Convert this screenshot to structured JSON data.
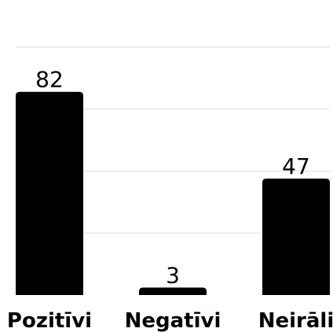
{
  "chart_data": {
    "type": "bar",
    "categories": [
      "Pozitīvi",
      "Negatīvi",
      "Neirāli"
    ],
    "values": [
      82,
      3,
      47
    ],
    "title": "",
    "xlabel": "",
    "ylabel": "",
    "ylim": [
      0,
      100
    ],
    "grid": true,
    "legend": "none",
    "colors": {
      "bar": "#000000",
      "grid": "#dddddd",
      "text": "#000000"
    }
  }
}
